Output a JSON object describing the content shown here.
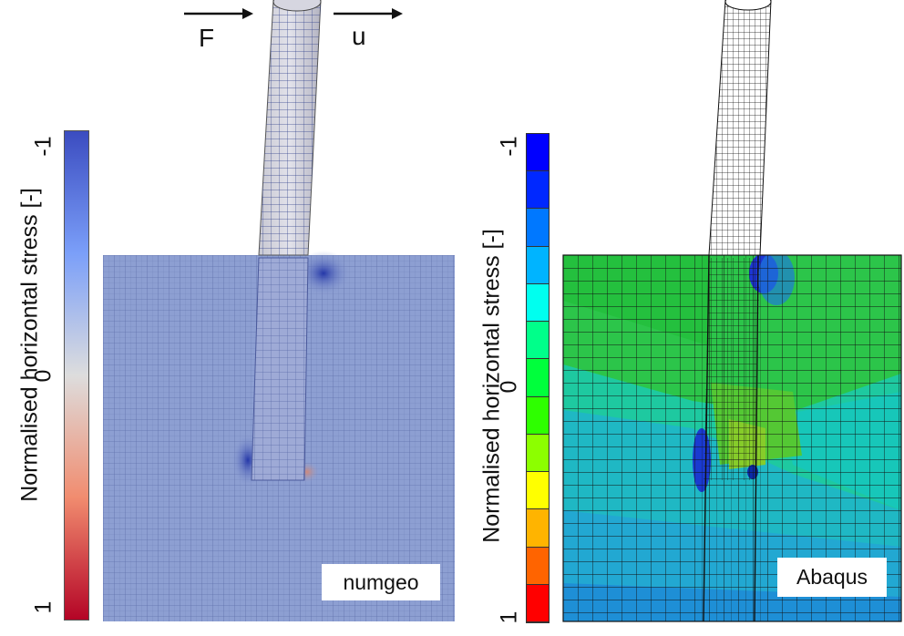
{
  "arrows": {
    "force_label": "F",
    "displacement_label": "u"
  },
  "left_panel": {
    "colorbar_title": "Normalised horizontal stress [-]",
    "ticks": [
      "-1",
      "0",
      "1"
    ],
    "panel_label": "numgeo",
    "colors": {
      "low": "#3a4fc1",
      "mid": "#dcdcdc",
      "high": "#b40426",
      "field": "#8d9fd2"
    }
  },
  "right_panel": {
    "colorbar_title": "Normalised horizontal stress [-]",
    "ticks": [
      "-1",
      "0",
      "1"
    ],
    "panel_label": "Abaqus",
    "colorbar_levels": [
      "#0000ff",
      "#0028ff",
      "#0078ff",
      "#00b4ff",
      "#00ffef",
      "#00ff8a",
      "#00ff3c",
      "#2eff00",
      "#8cff00",
      "#ffff00",
      "#ffb400",
      "#ff6400",
      "#ff0000"
    ]
  }
}
